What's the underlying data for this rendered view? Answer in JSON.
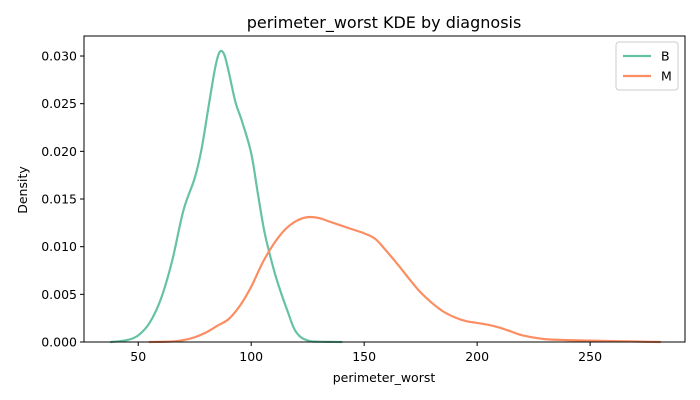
{
  "chart_data": {
    "type": "line",
    "title": "perimeter_worst KDE by diagnosis",
    "xlabel": "perimeter_worst",
    "ylabel": "Density",
    "xlim": [
      26,
      292
    ],
    "ylim": [
      0,
      0.0321
    ],
    "xticks": [
      50,
      100,
      150,
      200,
      250
    ],
    "xtick_labels": [
      "50",
      "100",
      "150",
      "200",
      "250"
    ],
    "yticks": [
      0.0,
      0.005,
      0.01,
      0.015,
      0.02,
      0.025,
      0.03
    ],
    "ytick_labels": [
      "0.000",
      "0.005",
      "0.010",
      "0.015",
      "0.020",
      "0.025",
      "0.030"
    ],
    "grid": false,
    "legend_position": "top-right",
    "series": [
      {
        "name": "B",
        "color": "#66c2a5",
        "x": [
          38,
          45,
          50,
          55,
          60,
          65,
          70,
          75,
          78,
          81,
          84,
          86,
          88,
          90,
          93,
          96,
          100,
          103,
          106,
          110,
          113,
          116,
          119,
          122,
          126,
          130,
          135,
          140
        ],
        "y": [
          0,
          0.0002,
          0.0007,
          0.002,
          0.0045,
          0.0085,
          0.0138,
          0.0172,
          0.0202,
          0.0245,
          0.0287,
          0.0304,
          0.0302,
          0.0284,
          0.0252,
          0.0231,
          0.0198,
          0.0155,
          0.0114,
          0.0076,
          0.0053,
          0.0033,
          0.0014,
          0.0005,
          0.0001,
          3e-05,
          1e-05,
          0
        ]
      },
      {
        "name": "M",
        "color": "#fc8d62",
        "x": [
          55,
          65,
          70,
          75,
          80,
          85,
          90,
          95,
          100,
          105,
          110,
          115,
          120,
          125,
          130,
          135,
          140,
          145,
          150,
          155,
          160,
          165,
          170,
          175,
          180,
          185,
          190,
          195,
          200,
          205,
          210,
          215,
          220,
          230,
          240,
          250,
          260,
          270,
          281
        ],
        "y": [
          0,
          5e-05,
          0.0002,
          0.0005,
          0.001,
          0.0017,
          0.0024,
          0.0038,
          0.0058,
          0.0083,
          0.0103,
          0.0118,
          0.0127,
          0.0131,
          0.013,
          0.0126,
          0.0122,
          0.0118,
          0.0114,
          0.0108,
          0.0095,
          0.0081,
          0.0066,
          0.0052,
          0.0041,
          0.0032,
          0.0026,
          0.0022,
          0.002,
          0.0018,
          0.0015,
          0.0011,
          0.0007,
          0.0003,
          0.0002,
          0.00015,
          0.0001,
          5e-05,
          0
        ]
      }
    ]
  }
}
